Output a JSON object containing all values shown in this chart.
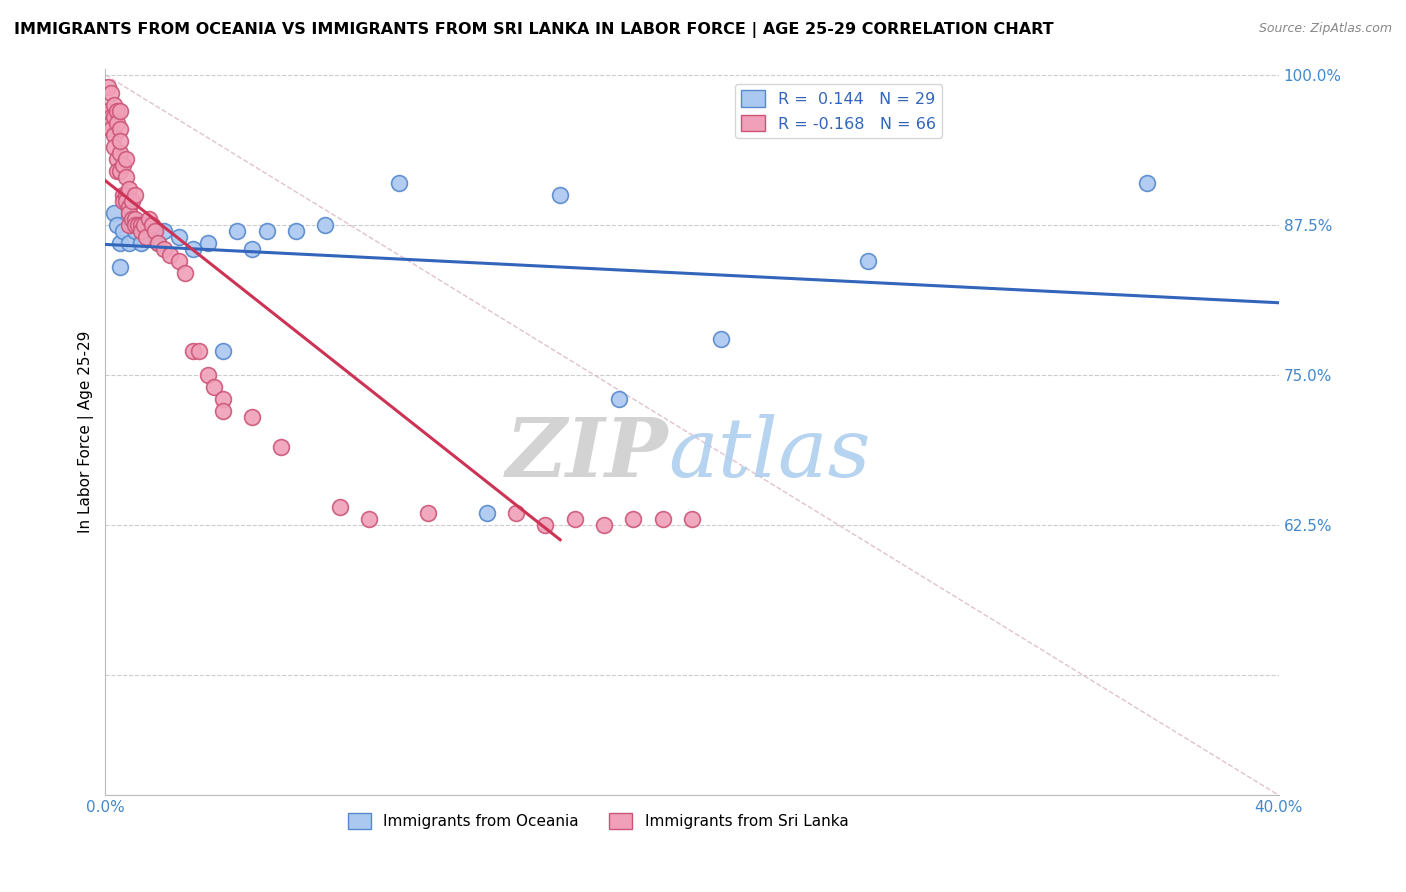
{
  "title": "IMMIGRANTS FROM OCEANIA VS IMMIGRANTS FROM SRI LANKA IN LABOR FORCE | AGE 25-29 CORRELATION CHART",
  "source": "Source: ZipAtlas.com",
  "ylabel": "In Labor Force | Age 25-29",
  "xlim": [
    0.0,
    0.4
  ],
  "ylim": [
    0.4,
    1.005
  ],
  "xticks": [
    0.0,
    0.05,
    0.1,
    0.15,
    0.2,
    0.25,
    0.3,
    0.35,
    0.4
  ],
  "yticks": [
    0.4,
    0.5,
    0.625,
    0.75,
    0.875,
    1.0
  ],
  "oceania_color": "#aac8f0",
  "srilanka_color": "#f0a0b8",
  "oceania_edge": "#5588cc",
  "srilanka_edge": "#cc5577",
  "trend_oceania_color": "#3366bb",
  "trend_srilanka_color": "#cc3355",
  "legend_oceania_label": "R =  0.144   N = 29",
  "legend_srilanka_label": "R = -0.168   N = 66",
  "watermark_zip": "ZIP",
  "watermark_atlas": "atlas",
  "oceania_x": [
    0.003,
    0.004,
    0.005,
    0.005,
    0.006,
    0.008,
    0.009,
    0.01,
    0.012,
    0.014,
    0.016,
    0.018,
    0.02,
    0.025,
    0.03,
    0.035,
    0.04,
    0.045,
    0.05,
    0.055,
    0.065,
    0.075,
    0.1,
    0.13,
    0.155,
    0.175,
    0.21,
    0.26,
    0.355
  ],
  "oceania_y": [
    0.885,
    0.875,
    0.86,
    0.84,
    0.87,
    0.86,
    0.875,
    0.87,
    0.86,
    0.875,
    0.87,
    0.86,
    0.87,
    0.865,
    0.855,
    0.86,
    0.77,
    0.87,
    0.855,
    0.87,
    0.87,
    0.875,
    0.91,
    0.635,
    0.9,
    0.73,
    0.78,
    0.845,
    0.91
  ],
  "srilanka_x": [
    0.001,
    0.001,
    0.002,
    0.002,
    0.002,
    0.002,
    0.003,
    0.003,
    0.003,
    0.003,
    0.004,
    0.004,
    0.004,
    0.004,
    0.005,
    0.005,
    0.005,
    0.005,
    0.005,
    0.006,
    0.006,
    0.006,
    0.007,
    0.007,
    0.007,
    0.007,
    0.008,
    0.008,
    0.008,
    0.008,
    0.009,
    0.009,
    0.01,
    0.01,
    0.01,
    0.011,
    0.012,
    0.012,
    0.013,
    0.014,
    0.015,
    0.016,
    0.017,
    0.018,
    0.02,
    0.022,
    0.025,
    0.027,
    0.03,
    0.032,
    0.035,
    0.037,
    0.04,
    0.04,
    0.05,
    0.06,
    0.08,
    0.09,
    0.11,
    0.14,
    0.15,
    0.16,
    0.17,
    0.18,
    0.19,
    0.2
  ],
  "srilanka_y": [
    0.99,
    0.97,
    0.965,
    0.96,
    0.955,
    0.985,
    0.975,
    0.965,
    0.95,
    0.94,
    0.97,
    0.96,
    0.93,
    0.92,
    0.935,
    0.955,
    0.97,
    0.945,
    0.92,
    0.9,
    0.925,
    0.895,
    0.9,
    0.93,
    0.915,
    0.895,
    0.89,
    0.905,
    0.885,
    0.875,
    0.895,
    0.88,
    0.9,
    0.88,
    0.875,
    0.875,
    0.875,
    0.87,
    0.875,
    0.865,
    0.88,
    0.875,
    0.87,
    0.86,
    0.855,
    0.85,
    0.845,
    0.835,
    0.77,
    0.77,
    0.75,
    0.74,
    0.73,
    0.72,
    0.715,
    0.69,
    0.64,
    0.63,
    0.635,
    0.635,
    0.625,
    0.63,
    0.625,
    0.63,
    0.63,
    0.63
  ],
  "background_color": "#ffffff",
  "grid_color": "#cccccc",
  "diag_line_color": "#ddbbcc",
  "title_fontsize": 11.5,
  "tick_label_color": "#4488cc"
}
